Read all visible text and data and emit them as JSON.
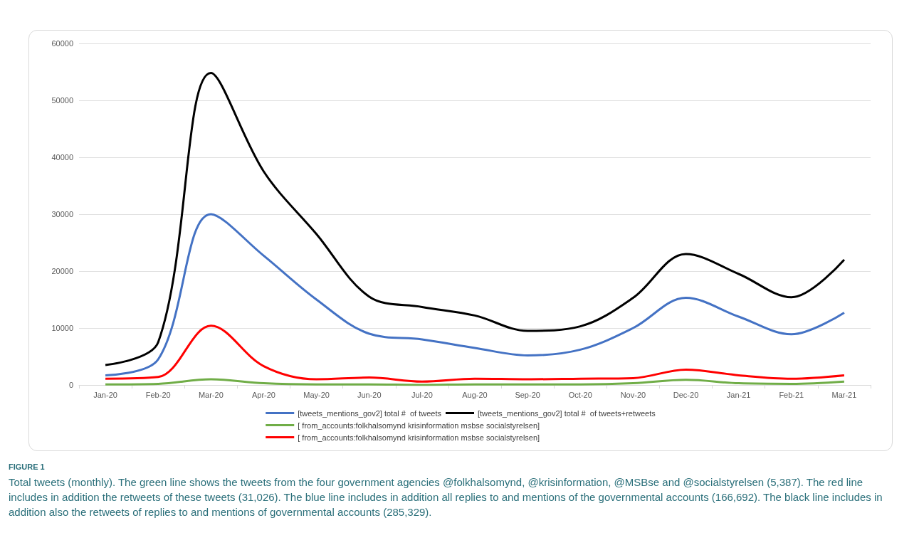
{
  "chart_data": {
    "type": "line",
    "title": "FIGURE 1",
    "annotations": [
      "Total tweets (monthly). The green line shows the tweets from the four government agencies @folkhalsomynd, @krisinformation, @MSBse and @socialstyrelsen (5,387). The red line includes in addition the retweets of these tweets (31,026). The blue line includes in addition all replies to and mentions of the governmental accounts (166,692). The black line includes in addition also the retweets of replies to and mentions of governmental accounts (285,329)."
    ],
    "categories": [
      "Jan-20",
      "Feb-20",
      "Mar-20",
      "Apr-20",
      "May-20",
      "Jun-20",
      "Jul-20",
      "Aug-20",
      "Sep-20",
      "Oct-20",
      "Nov-20",
      "Dec-20",
      "Jan-21",
      "Feb-21",
      "Mar-21"
    ],
    "series": [
      {
        "name": "[tweets_mentions_gov2] total #  of tweets",
        "color": "#4472c4",
        "values": [
          1700,
          4500,
          30000,
          22700,
          15000,
          9000,
          8000,
          6500,
          5200,
          6200,
          10000,
          15300,
          12000,
          8900,
          12700
        ]
      },
      {
        "name": "[tweets_mentions_gov2] total #  of tweets+retweets",
        "color": "#000000",
        "values": [
          3500,
          7500,
          54800,
          37500,
          26500,
          15500,
          13700,
          12200,
          9500,
          10300,
          15300,
          23000,
          19500,
          15400,
          22000
        ]
      },
      {
        "name": "[ from_accounts:folkhalsomynd krisinformation msbse socialstyrelsen]",
        "color": "#70ad47",
        "values": [
          100,
          200,
          1000,
          300,
          100,
          100,
          0,
          100,
          100,
          100,
          300,
          900,
          300,
          200,
          600
        ]
      },
      {
        "name": "[ from_accounts:folkhalsomynd krisinformation msbse socialstyrelsen]",
        "color": "#ff0000",
        "values": [
          1100,
          1400,
          10400,
          3300,
          1000,
          1300,
          600,
          1100,
          1000,
          1100,
          1200,
          2700,
          1700,
          1100,
          1700
        ]
      }
    ],
    "ylim": [
      0,
      60000
    ],
    "yticks": [
      0,
      10000,
      20000,
      30000,
      40000,
      50000,
      60000
    ],
    "grid": "y",
    "legend": "bottom",
    "marker": "none",
    "line_style": "solid"
  }
}
